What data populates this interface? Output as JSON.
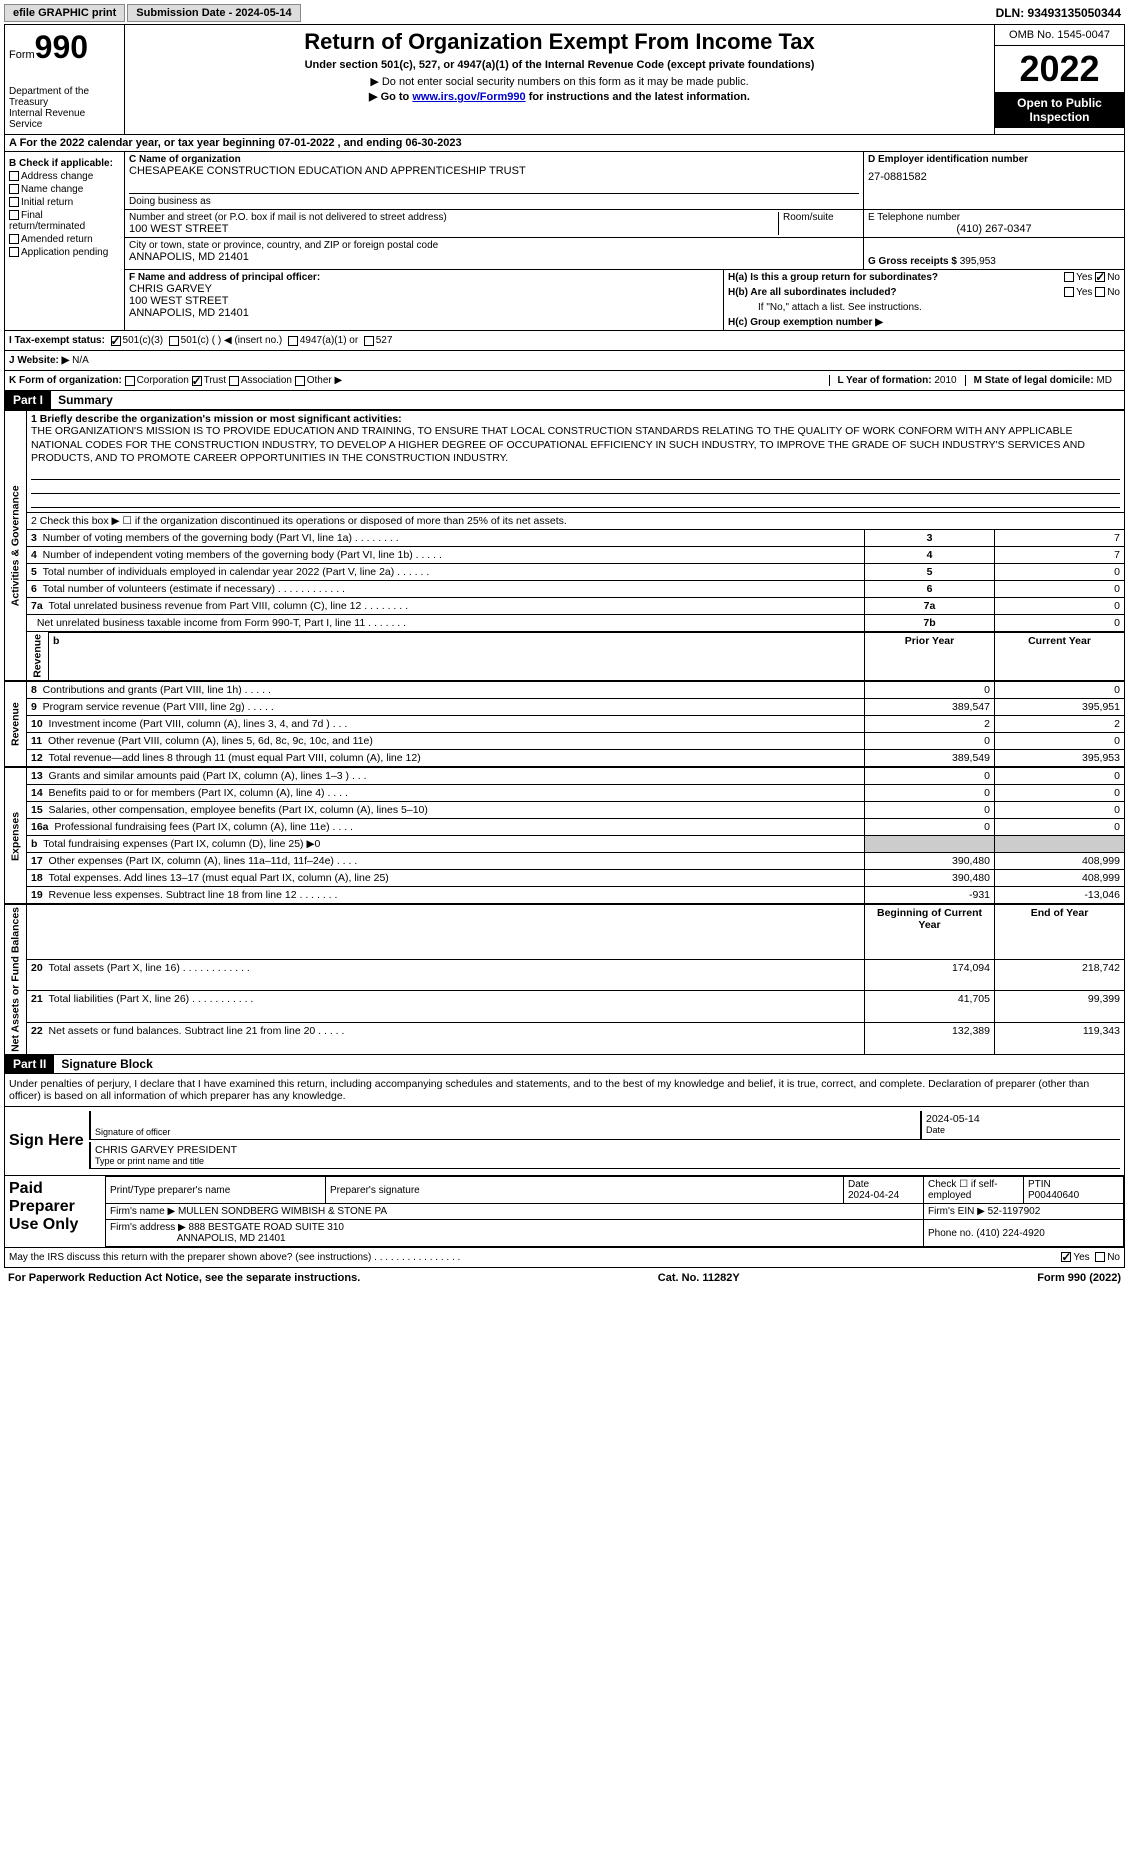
{
  "header": {
    "efile": "efile GRAPHIC print",
    "submission_label": "Submission Date - 2024-05-14",
    "dln": "DLN: 93493135050344"
  },
  "form_top": {
    "form_word": "Form",
    "form_number": "990",
    "dept": "Department of the Treasury",
    "irs": "Internal Revenue Service",
    "title": "Return of Organization Exempt From Income Tax",
    "subtitle": "Under section 501(c), 527, or 4947(a)(1) of the Internal Revenue Code (except private foundations)",
    "note1": "▶ Do not enter social security numbers on this form as it may be made public.",
    "note2_pre": "▶ Go to ",
    "note2_link": "www.irs.gov/Form990",
    "note2_post": " for instructions and the latest information.",
    "omb": "OMB No. 1545-0047",
    "year": "2022",
    "open_pub": "Open to Public Inspection"
  },
  "section_a": "A For the 2022 calendar year, or tax year beginning 07-01-2022     , and ending 06-30-2023",
  "section_b": {
    "label": "B Check if applicable:",
    "items": [
      "Address change",
      "Name change",
      "Initial return",
      "Final return/terminated",
      "Amended return",
      "Application pending"
    ]
  },
  "section_c": {
    "name_label": "C Name of organization",
    "org_name": "CHESAPEAKE CONSTRUCTION EDUCATION AND APPRENTICESHIP TRUST",
    "dba_label": "Doing business as",
    "street_label": "Number and street (or P.O. box if mail is not delivered to street address)",
    "street": "100 WEST STREET",
    "room_label": "Room/suite",
    "city_label": "City or town, state or province, country, and ZIP or foreign postal code",
    "city": "ANNAPOLIS, MD  21401"
  },
  "section_d": {
    "label": "D Employer identification number",
    "value": "27-0881582"
  },
  "section_e": {
    "label": "E Telephone number",
    "value": "(410) 267-0347"
  },
  "section_g": {
    "label": "G Gross receipts $",
    "value": "395,953"
  },
  "section_f": {
    "label": "F  Name and address of principal officer:",
    "name": "CHRIS GARVEY",
    "street": "100 WEST STREET",
    "city": "ANNAPOLIS, MD  21401"
  },
  "section_h": {
    "ha": "H(a)  Is this a group return for subordinates?",
    "hb": "H(b)  Are all subordinates included?",
    "hb_note": "If \"No,\" attach a list. See instructions.",
    "hc": "H(c)  Group exemption number ▶",
    "yes": "Yes",
    "no": "No"
  },
  "section_i": {
    "label": "I   Tax-exempt status:",
    "opt1": "501(c)(3)",
    "opt2": "501(c) (   ) ◀ (insert no.)",
    "opt3": "4947(a)(1) or",
    "opt4": "527"
  },
  "section_j": {
    "label": "J   Website: ▶",
    "value": "N/A"
  },
  "section_k": {
    "label": "K Form of organization:",
    "opts": [
      "Corporation",
      "Trust",
      "Association",
      "Other ▶"
    ]
  },
  "section_l": {
    "label": "L Year of formation:",
    "value": "2010"
  },
  "section_m": {
    "label": "M State of legal domicile:",
    "value": "MD"
  },
  "part1": {
    "header": "Part I",
    "title": "Summary"
  },
  "summary": {
    "side1": "Activities & Governance",
    "side2": "Revenue",
    "side3": "Expenses",
    "side4": "Net Assets or Fund Balances",
    "line1_label": "1  Briefly describe the organization's mission or most significant activities:",
    "mission": "THE ORGANIZATION'S MISSION IS TO PROVIDE EDUCATION AND TRAINING, TO ENSURE THAT LOCAL CONSTRUCTION STANDARDS RELATING TO THE QUALITY OF WORK CONFORM WITH ANY APPLICABLE NATIONAL CODES FOR THE CONSTRUCTION INDUSTRY, TO DEVELOP A HIGHER DEGREE OF OCCUPATIONAL EFFICIENCY IN SUCH INDUSTRY, TO IMPROVE THE GRADE OF SUCH INDUSTRY'S SERVICES AND PRODUCTS, AND TO PROMOTE CAREER OPPORTUNITIES IN THE CONSTRUCTION INDUSTRY.",
    "line2": "2    Check this box ▶ ☐  if the organization discontinued its operations or disposed of more than 25% of its net assets.",
    "rows_gov": [
      {
        "n": "3",
        "t": "Number of voting members of the governing body (Part VI, line 1a)   .    .    .    .    .    .    .    .",
        "k": "3",
        "v": "7"
      },
      {
        "n": "4",
        "t": "Number of independent voting members of the governing body (Part VI, line 1b)   .    .    .    .    .",
        "k": "4",
        "v": "7"
      },
      {
        "n": "5",
        "t": "Total number of individuals employed in calendar year 2022 (Part V, line 2a)   .    .    .    .    .    .",
        "k": "5",
        "v": "0"
      },
      {
        "n": "6",
        "t": "Total number of volunteers (estimate if necessary)   .    .    .    .    .    .    .    .    .    .    .    .",
        "k": "6",
        "v": "0"
      },
      {
        "n": "7a",
        "t": "Total unrelated business revenue from Part VIII, column (C), line 12   .    .    .    .    .    .    .    .",
        "k": "7a",
        "v": "0"
      },
      {
        "n": "",
        "t": "Net unrelated business taxable income from Form 990-T, Part I, line 11    .    .    .    .    .    .    .",
        "k": "7b",
        "v": "0"
      }
    ],
    "col_prior": "Prior Year",
    "col_current": "Current Year",
    "rows_rev": [
      {
        "n": "8",
        "t": "Contributions and grants (Part VIII, line 1h)   .    .    .    .    .",
        "p": "0",
        "c": "0"
      },
      {
        "n": "9",
        "t": "Program service revenue (Part VIII, line 2g)    .    .    .    .    .",
        "p": "389,547",
        "c": "395,951"
      },
      {
        "n": "10",
        "t": "Investment income (Part VIII, column (A), lines 3, 4, and 7d )    .    .    .",
        "p": "2",
        "c": "2"
      },
      {
        "n": "11",
        "t": "Other revenue (Part VIII, column (A), lines 5, 6d, 8c, 9c, 10c, and 11e)",
        "p": "0",
        "c": "0"
      },
      {
        "n": "12",
        "t": "Total revenue—add lines 8 through 11 (must equal Part VIII, column (A), line 12)",
        "p": "389,549",
        "c": "395,953"
      }
    ],
    "rows_exp": [
      {
        "n": "13",
        "t": "Grants and similar amounts paid (Part IX, column (A), lines 1–3 )  .    .    .",
        "p": "0",
        "c": "0"
      },
      {
        "n": "14",
        "t": "Benefits paid to or for members (Part IX, column (A), line 4)   .    .    .    .",
        "p": "0",
        "c": "0"
      },
      {
        "n": "15",
        "t": "Salaries, other compensation, employee benefits (Part IX, column (A), lines 5–10)",
        "p": "0",
        "c": "0"
      },
      {
        "n": "16a",
        "t": "Professional fundraising fees (Part IX, column (A), line 11e)   .    .    .    .",
        "p": "0",
        "c": "0"
      },
      {
        "n": "b",
        "t": "Total fundraising expenses (Part IX, column (D), line 25) ▶0",
        "p": "",
        "c": "",
        "gray": true
      },
      {
        "n": "17",
        "t": "Other expenses (Part IX, column (A), lines 11a–11d, 11f–24e)    .    .    .    .",
        "p": "390,480",
        "c": "408,999"
      },
      {
        "n": "18",
        "t": "Total expenses. Add lines 13–17 (must equal Part IX, column (A), line 25)",
        "p": "390,480",
        "c": "408,999"
      },
      {
        "n": "19",
        "t": "Revenue less expenses. Subtract line 18 from line 12   .    .    .    .    .    .    .",
        "p": "-931",
        "c": "-13,046"
      }
    ],
    "col_begin": "Beginning of Current Year",
    "col_end": "End of Year",
    "rows_net": [
      {
        "n": "20",
        "t": "Total assets (Part X, line 16)    .    .    .    .    .    .    .    .    .    .    .    .",
        "p": "174,094",
        "c": "218,742"
      },
      {
        "n": "21",
        "t": "Total liabilities (Part X, line 26)    .    .    .    .    .    .    .    .    .    .    .",
        "p": "41,705",
        "c": "99,399"
      },
      {
        "n": "22",
        "t": "Net assets or fund balances. Subtract line 21 from line 20    .    .    .    .    .",
        "p": "132,389",
        "c": "119,343"
      }
    ]
  },
  "part2": {
    "header": "Part II",
    "title": "Signature Block"
  },
  "sig": {
    "declaration": "Under penalties of perjury, I declare that I have examined this return, including accompanying schedules and statements, and to the best of my knowledge and belief, it is true, correct, and complete. Declaration of preparer (other than officer) is based on all information of which preparer has any knowledge.",
    "sign_here": "Sign Here",
    "sig_officer": "Signature of officer",
    "date_label": "Date",
    "sig_date": "2024-05-14",
    "officer_name": "CHRIS GARVEY PRESIDENT",
    "type_name": "Type or print name and title",
    "paid_prep": "Paid Preparer Use Only",
    "prep_name_label": "Print/Type preparer's name",
    "prep_sig_label": "Preparer's signature",
    "prep_date": "2024-04-24",
    "check_if": "Check ☐ if self-employed",
    "ptin_label": "PTIN",
    "ptin": "P00440640",
    "firm_name_label": "Firm's name      ▶",
    "firm_name": "MULLEN SONDBERG WIMBISH & STONE PA",
    "firm_ein_label": "Firm's EIN ▶",
    "firm_ein": "52-1197902",
    "firm_addr_label": "Firm's address ▶",
    "firm_addr": "888 BESTGATE ROAD SUITE 310",
    "firm_city": "ANNAPOLIS, MD  21401",
    "phone_label": "Phone no.",
    "phone": "(410) 224-4920",
    "may_irs": "May the IRS discuss this return with the preparer shown above? (see instructions)    .    .    .    .    .    .    .    .    .    .    .    .    .    .    .    ."
  },
  "footer": {
    "pra": "For Paperwork Reduction Act Notice, see the separate instructions.",
    "cat": "Cat. No. 11282Y",
    "form": "Form 990 (2022)"
  }
}
